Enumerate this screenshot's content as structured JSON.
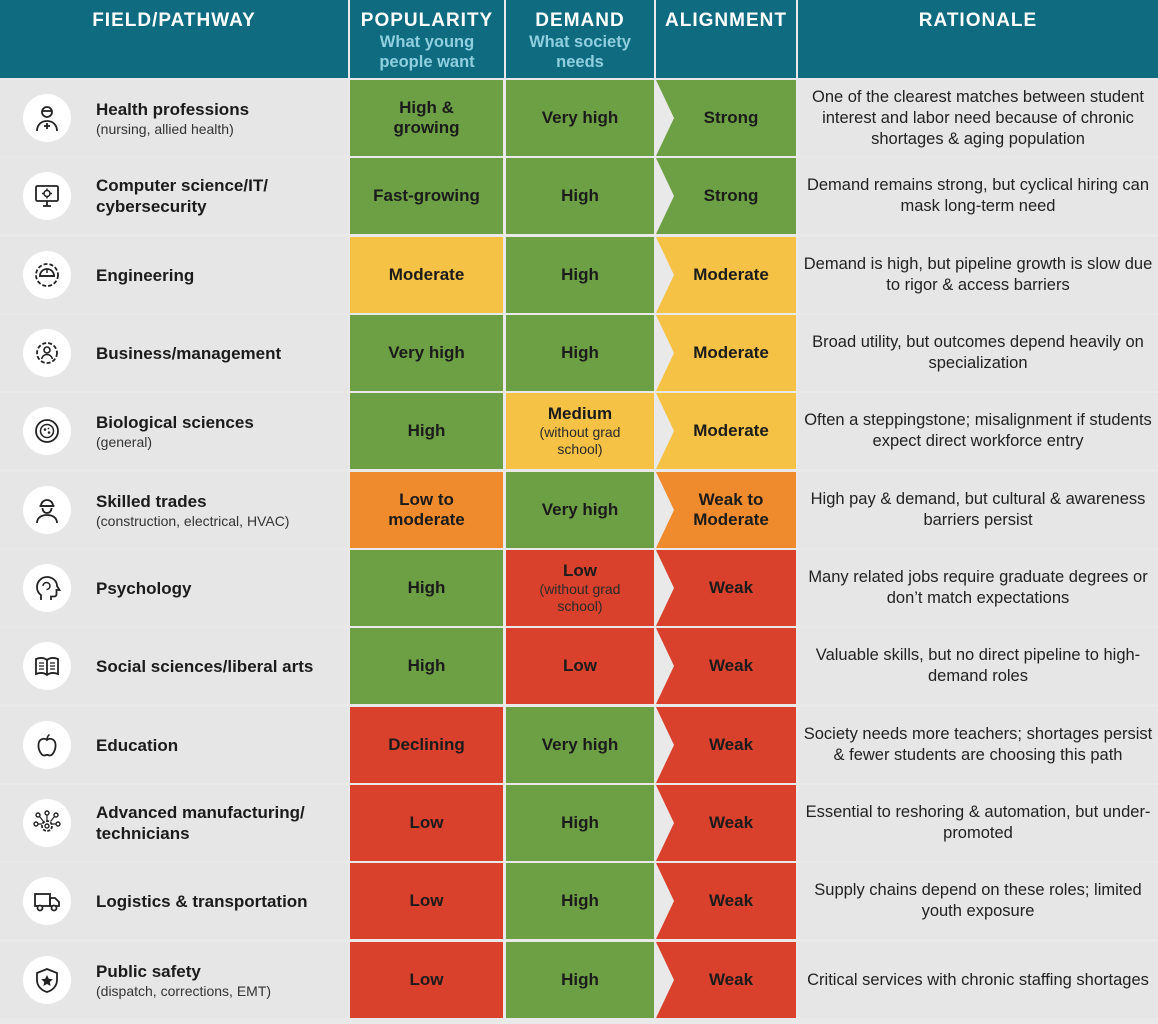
{
  "header": {
    "field": "FIELD/PATHWAY",
    "popularity": "POPULARITY",
    "popularity_sub": "What young people want",
    "demand": "DEMAND",
    "demand_sub": "What society needs",
    "alignment": "ALIGNMENT",
    "rationale": "RATIONALE"
  },
  "colors": {
    "header_bg": "#0e6b80",
    "green": "#6da044",
    "yellow": "#f6c245",
    "orange": "#ef8b2d",
    "red": "#d9412c"
  },
  "rows": [
    {
      "name": "Health professions",
      "sub": "(nursing, allied health)",
      "icon": "health-worker-icon",
      "popularity": "High & growing",
      "pop_level": "green",
      "demand": "Very high",
      "demand_sub": "",
      "dem_level": "green",
      "alignment": "Strong",
      "align_level": "green",
      "rationale": "One of the clearest matches between student interest and labor need because of chronic shortages & aging population"
    },
    {
      "name": "Computer science/IT/ cybersecurity",
      "sub": "",
      "icon": "computer-icon",
      "popularity": "Fast-growing",
      "pop_level": "green",
      "demand": "High",
      "demand_sub": "",
      "dem_level": "green",
      "alignment": "Strong",
      "align_level": "green",
      "rationale": "Demand remains strong, but cyclical hiring can mask long-term need"
    },
    {
      "name": "Engineering",
      "sub": "",
      "icon": "hardhat-gear-icon",
      "popularity": "Moderate",
      "pop_level": "yellow",
      "demand": "High",
      "demand_sub": "",
      "dem_level": "green",
      "alignment": "Moderate",
      "align_level": "yellow",
      "rationale": "Demand is high, but pipeline growth is slow due to rigor & access barriers"
    },
    {
      "name": "Business/management",
      "sub": "",
      "icon": "business-gear-icon",
      "popularity": "Very high",
      "pop_level": "green",
      "demand": "High",
      "demand_sub": "",
      "dem_level": "green",
      "alignment": "Moderate",
      "align_level": "yellow",
      "rationale": "Broad utility, but outcomes depend heavily on specialization"
    },
    {
      "name": "Biological sciences",
      "sub": "(general)",
      "icon": "cell-icon",
      "popularity": "High",
      "pop_level": "green",
      "demand": "Medium",
      "demand_sub": "(without grad school)",
      "dem_level": "yellow",
      "alignment": "Moderate",
      "align_level": "yellow",
      "rationale": "Often a steppingstone; misalignment if students expect direct workforce entry"
    },
    {
      "name": "Skilled trades",
      "sub": "(construction, electrical, HVAC)",
      "icon": "tradesperson-icon",
      "popularity": "Low to moderate",
      "pop_level": "orange",
      "demand": "Very high",
      "demand_sub": "",
      "dem_level": "green",
      "alignment": "Weak to Moderate",
      "align_level": "orange",
      "rationale": "High pay & demand, but cultural & awareness barriers persist"
    },
    {
      "name": "Psychology",
      "sub": "",
      "icon": "brain-head-icon",
      "popularity": "High",
      "pop_level": "green",
      "demand": "Low",
      "demand_sub": "(without grad school)",
      "dem_level": "red",
      "alignment": "Weak",
      "align_level": "red",
      "rationale": "Many related jobs require graduate degrees or don’t match expectations"
    },
    {
      "name": "Social sciences/liberal arts",
      "sub": "",
      "icon": "open-book-icon",
      "popularity": "High",
      "pop_level": "green",
      "demand": "Low",
      "demand_sub": "",
      "dem_level": "red",
      "alignment": "Weak",
      "align_level": "red",
      "rationale": "Valuable skills, but no direct pipeline to high-demand roles"
    },
    {
      "name": "Education",
      "sub": "",
      "icon": "apple-icon",
      "popularity": "Declining",
      "pop_level": "red",
      "demand": "Very high",
      "demand_sub": "",
      "dem_level": "green",
      "alignment": "Weak",
      "align_level": "red",
      "rationale": "Society needs more teachers; shortages persist & fewer students are choosing this path"
    },
    {
      "name": "Advanced manufacturing/ technicians",
      "sub": "",
      "icon": "gear-network-icon",
      "popularity": "Low",
      "pop_level": "red",
      "demand": "High",
      "demand_sub": "",
      "dem_level": "green",
      "alignment": "Weak",
      "align_level": "red",
      "rationale": "Essential to reshoring & automation, but under-promoted"
    },
    {
      "name": "Logistics & transportation",
      "sub": "",
      "icon": "truck-icon",
      "popularity": "Low",
      "pop_level": "red",
      "demand": "High",
      "demand_sub": "",
      "dem_level": "green",
      "alignment": "Weak",
      "align_level": "red",
      "rationale": "Supply chains depend on these roles; limited youth exposure"
    },
    {
      "name": "Public safety",
      "sub": "(dispatch, corrections, EMT)",
      "icon": "shield-star-icon",
      "popularity": "Low",
      "pop_level": "red",
      "demand": "High",
      "demand_sub": "",
      "dem_level": "green",
      "alignment": "Weak",
      "align_level": "red",
      "rationale": "Critical services with chronic staffing shortages"
    }
  ]
}
